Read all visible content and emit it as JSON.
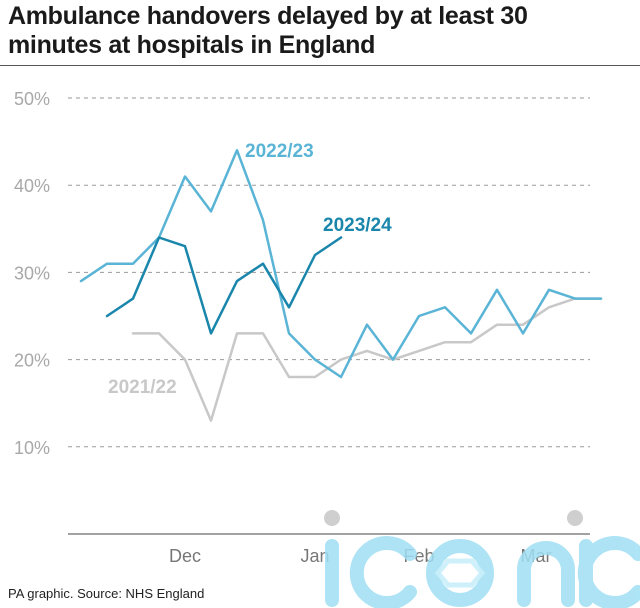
{
  "title": "Ambulance handovers delayed by at least 30 minutes at hospitals in England",
  "footer": "PA graphic. Source: NHS England",
  "watermark_text": "iconic",
  "chart_data": {
    "type": "line",
    "title": "Ambulance handovers delayed by at least 30 minutes at hospitals in England",
    "ylabel": "",
    "xlabel": "",
    "ylim": [
      0,
      50
    ],
    "yticks": [
      10,
      20,
      30,
      40,
      50
    ],
    "ytick_labels": [
      "10%",
      "20%",
      "30%",
      "40%",
      "50%"
    ],
    "x_week_count": 20,
    "xtick_labels": [
      {
        "label": "Dec",
        "week": 4
      },
      {
        "label": "Jan",
        "week": 9
      },
      {
        "label": "Feb",
        "week": 13
      },
      {
        "label": "Mar",
        "week": 17.5
      }
    ],
    "grid": true,
    "legend": "inline labels",
    "series": [
      {
        "name": "2021/22",
        "color": "#c8c8c8",
        "weeks": [
          2,
          3,
          4,
          5,
          6,
          7,
          8,
          9,
          10,
          11,
          12,
          13,
          14,
          15,
          16,
          17,
          18,
          19,
          20
        ],
        "values": [
          23,
          23,
          20,
          13,
          23,
          23,
          18,
          18,
          20,
          21,
          20,
          21,
          22,
          22,
          24,
          24,
          26,
          27,
          27
        ]
      },
      {
        "name": "2022/23",
        "color": "#5ab4d6",
        "weeks": [
          0,
          1,
          2,
          3,
          4,
          5,
          6,
          7,
          8,
          9,
          10,
          11,
          12,
          13,
          14,
          15,
          16,
          17,
          18,
          19,
          20
        ],
        "values": [
          29,
          31,
          31,
          34,
          41,
          37,
          44,
          36,
          23,
          20,
          18,
          24,
          20,
          25,
          26,
          23,
          28,
          23,
          28,
          27,
          27
        ]
      },
      {
        "name": "2023/24",
        "color": "#1a86ab",
        "weeks": [
          1,
          2,
          3,
          4,
          5,
          6,
          7,
          8,
          9,
          10
        ],
        "values": [
          25,
          27,
          34,
          33,
          23,
          29,
          31,
          26,
          32,
          34
        ]
      }
    ]
  }
}
